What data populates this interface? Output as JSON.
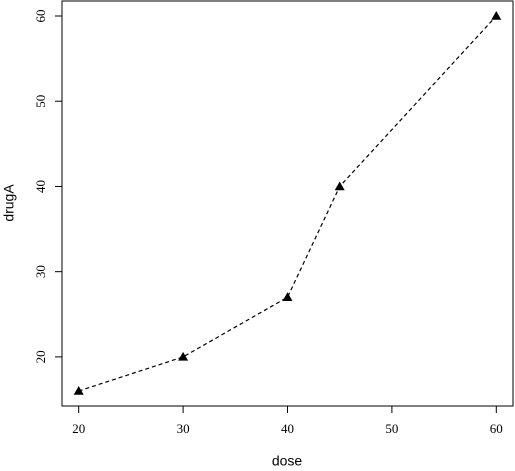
{
  "chart_data": {
    "type": "line",
    "xlabel": "dose",
    "ylabel": "drugA",
    "x": [
      20,
      30,
      40,
      45,
      60
    ],
    "series": [
      {
        "values": [
          16,
          20,
          27,
          40,
          60
        ],
        "color": "#000000"
      }
    ],
    "line_style": "dashed",
    "marker": "triangle",
    "xlim": [
      18.4,
      61.6
    ],
    "xticks": [
      20,
      30,
      40,
      50,
      60
    ],
    "ylim": [
      14.24,
      61.76
    ],
    "yticks": [
      20,
      30,
      40,
      50,
      60
    ]
  }
}
